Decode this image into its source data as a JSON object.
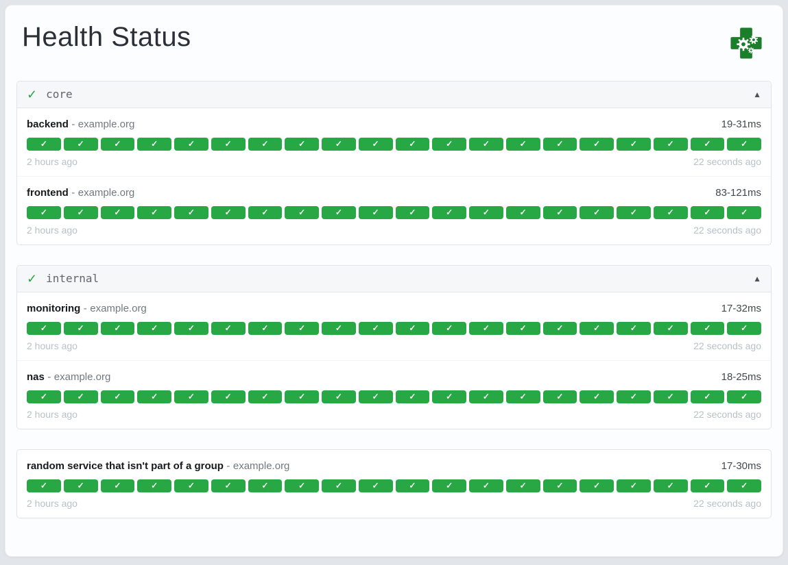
{
  "header": {
    "title": "Health Status",
    "logo_icon": "gatus-health-cross",
    "logo_color": "#1b7e2b"
  },
  "colors": {
    "success": "#28a745"
  },
  "groups": [
    {
      "name": "core",
      "has_header": true,
      "status_symbol": "✓",
      "collapse_symbol": "▲",
      "endpoints": [
        {
          "name": "backend",
          "separator": "-",
          "hostname": "example.org",
          "response_time": "19-31ms",
          "oldest_result": "2 hours ago",
          "newest_result": "22 seconds ago",
          "results": {
            "status": "success",
            "symbol": "✓",
            "count": 20
          }
        },
        {
          "name": "frontend",
          "separator": "-",
          "hostname": "example.org",
          "response_time": "83-121ms",
          "oldest_result": "2 hours ago",
          "newest_result": "22 seconds ago",
          "results": {
            "status": "success",
            "symbol": "✓",
            "count": 20
          }
        }
      ]
    },
    {
      "name": "internal",
      "has_header": true,
      "status_symbol": "✓",
      "collapse_symbol": "▲",
      "endpoints": [
        {
          "name": "monitoring",
          "separator": "-",
          "hostname": "example.org",
          "response_time": "17-32ms",
          "oldest_result": "2 hours ago",
          "newest_result": "22 seconds ago",
          "results": {
            "status": "success",
            "symbol": "✓",
            "count": 20
          }
        },
        {
          "name": "nas",
          "separator": "-",
          "hostname": "example.org",
          "response_time": "18-25ms",
          "oldest_result": "2 hours ago",
          "newest_result": "22 seconds ago",
          "results": {
            "status": "success",
            "symbol": "✓",
            "count": 20
          }
        }
      ]
    },
    {
      "name": "",
      "has_header": false,
      "status_symbol": "",
      "collapse_symbol": "",
      "endpoints": [
        {
          "name": "random service that isn't part of a group",
          "separator": "-",
          "hostname": "example.org",
          "response_time": "17-30ms",
          "oldest_result": "2 hours ago",
          "newest_result": "22 seconds ago",
          "results": {
            "status": "success",
            "symbol": "✓",
            "count": 20
          }
        }
      ]
    }
  ]
}
